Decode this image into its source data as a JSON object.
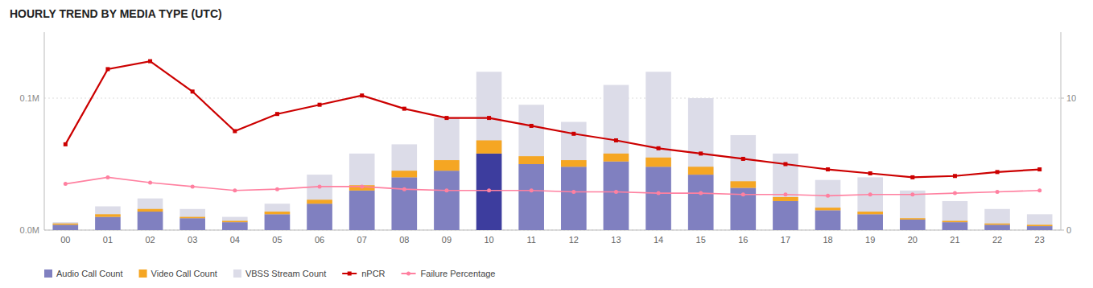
{
  "chart_data": {
    "type": "bar",
    "title": "HOURLY TREND BY MEDIA TYPE (UTC)",
    "categories": [
      "00",
      "01",
      "02",
      "03",
      "04",
      "05",
      "06",
      "07",
      "08",
      "09",
      "10",
      "11",
      "12",
      "13",
      "14",
      "15",
      "16",
      "17",
      "18",
      "19",
      "20",
      "21",
      "22",
      "23"
    ],
    "series": [
      {
        "name": "Audio Call Count",
        "type": "bar",
        "stacked": true,
        "color": "#8080c0",
        "colors": [
          "#8080c0",
          "#8080c0",
          "#8080c0",
          "#8080c0",
          "#8080c0",
          "#8080c0",
          "#8080c0",
          "#8080c0",
          "#8080c0",
          "#8080c0",
          "#3d3d9e",
          "#8080c0",
          "#8080c0",
          "#8080c0",
          "#8080c0",
          "#8080c0",
          "#8080c0",
          "#8080c0",
          "#8080c0",
          "#8080c0",
          "#8080c0",
          "#8080c0",
          "#8080c0",
          "#8080c0"
        ],
        "values": [
          0.004,
          0.01,
          0.014,
          0.009,
          0.006,
          0.012,
          0.02,
          0.03,
          0.04,
          0.045,
          0.058,
          0.05,
          0.048,
          0.052,
          0.048,
          0.042,
          0.032,
          0.022,
          0.015,
          0.012,
          0.008,
          0.006,
          0.004,
          0.003
        ]
      },
      {
        "name": "Video Call Count",
        "type": "bar",
        "stacked": true,
        "color": "#f5a623",
        "values": [
          0.001,
          0.002,
          0.002,
          0.001,
          0.001,
          0.002,
          0.003,
          0.004,
          0.005,
          0.008,
          0.01,
          0.006,
          0.005,
          0.006,
          0.007,
          0.006,
          0.005,
          0.003,
          0.002,
          0.002,
          0.001,
          0.001,
          0.001,
          0.001
        ]
      },
      {
        "name": "VBSS Stream Count",
        "type": "bar",
        "stacked": false,
        "color": "#dcdce8",
        "values": [
          0.006,
          0.018,
          0.024,
          0.016,
          0.01,
          0.02,
          0.042,
          0.058,
          0.065,
          0.085,
          0.12,
          0.095,
          0.082,
          0.11,
          0.12,
          0.1,
          0.072,
          0.058,
          0.038,
          0.04,
          0.03,
          0.022,
          0.016,
          0.012
        ]
      },
      {
        "name": "nPCR",
        "type": "line",
        "axis": "y2",
        "color": "#cc0000",
        "marker": "square",
        "line_style": "solid",
        "values": [
          6.5,
          12.2,
          12.8,
          10.5,
          7.5,
          8.8,
          9.5,
          10.2,
          9.2,
          8.5,
          8.5,
          7.9,
          7.3,
          6.8,
          6.2,
          5.8,
          5.4,
          5.0,
          4.6,
          4.3,
          4.0,
          4.1,
          4.4,
          4.6
        ]
      },
      {
        "name": "Failure Percentage",
        "type": "line",
        "axis": "y2",
        "color": "#ff80a0",
        "marker": "circle",
        "line_style": "solid",
        "values": [
          3.5,
          4.0,
          3.6,
          3.3,
          3.0,
          3.1,
          3.3,
          3.3,
          3.1,
          3.0,
          3.0,
          3.0,
          2.9,
          2.9,
          2.8,
          2.8,
          2.7,
          2.7,
          2.6,
          2.7,
          2.7,
          2.8,
          2.9,
          3.0
        ]
      }
    ],
    "ylim": [
      0,
      0.15
    ],
    "yticks": [
      {
        "value": 0.0,
        "label": "0.0M"
      },
      {
        "value": 0.1,
        "label": "0.1M"
      }
    ],
    "y2lim": [
      0,
      15
    ],
    "y2ticks": [
      0,
      10
    ],
    "grid": true,
    "legend": "bottom"
  }
}
